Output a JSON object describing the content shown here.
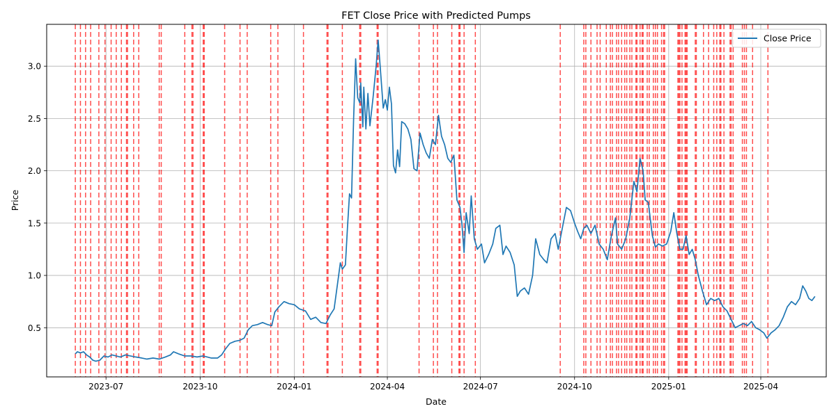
{
  "chart_data": {
    "type": "line",
    "title": "FET Close Price with Predicted Pumps",
    "xlabel": "Date",
    "ylabel": "Price",
    "x_range": [
      "2023-05-04",
      "2025-06-04"
    ],
    "ylim": [
      0.03,
      3.4
    ],
    "grid": true,
    "legend_position": "top-right",
    "x_ticks": [
      "2023-07-01",
      "2023-10-01",
      "2024-01-01",
      "2024-04-01",
      "2024-07-01",
      "2024-10-01",
      "2025-01-01",
      "2025-04-01"
    ],
    "x_tick_labels": [
      "2023-07",
      "2023-10",
      "2024-01",
      "2024-04",
      "2024-07",
      "2024-10",
      "2025-01",
      "2025-04"
    ],
    "y_ticks": [
      0.5,
      1.0,
      1.5,
      2.0,
      2.5,
      3.0
    ],
    "y_tick_labels": [
      "0.5",
      "1.0",
      "1.5",
      "2.0",
      "2.5",
      "3.0"
    ],
    "colors": {
      "line": "#1f77b4",
      "pump": "#ff0000",
      "grid": "#b0b0b0"
    },
    "series": [
      {
        "name": "Close Price",
        "points": [
          [
            "2023-06-01",
            0.25
          ],
          [
            "2023-06-03",
            0.27
          ],
          [
            "2023-06-06",
            0.26
          ],
          [
            "2023-06-09",
            0.27
          ],
          [
            "2023-06-12",
            0.24
          ],
          [
            "2023-06-15",
            0.22
          ],
          [
            "2023-06-18",
            0.19
          ],
          [
            "2023-06-21",
            0.18
          ],
          [
            "2023-06-25",
            0.19
          ],
          [
            "2023-06-29",
            0.23
          ],
          [
            "2023-07-03",
            0.22
          ],
          [
            "2023-07-07",
            0.24
          ],
          [
            "2023-07-11",
            0.23
          ],
          [
            "2023-07-15",
            0.22
          ],
          [
            "2023-07-20",
            0.24
          ],
          [
            "2023-07-25",
            0.23
          ],
          [
            "2023-07-30",
            0.22
          ],
          [
            "2023-08-05",
            0.21
          ],
          [
            "2023-08-10",
            0.2
          ],
          [
            "2023-08-16",
            0.21
          ],
          [
            "2023-08-22",
            0.2
          ],
          [
            "2023-08-28",
            0.22
          ],
          [
            "2023-09-02",
            0.24
          ],
          [
            "2023-09-05",
            0.27
          ],
          [
            "2023-09-10",
            0.25
          ],
          [
            "2023-09-16",
            0.23
          ],
          [
            "2023-09-22",
            0.23
          ],
          [
            "2023-09-28",
            0.22
          ],
          [
            "2023-10-04",
            0.23
          ],
          [
            "2023-10-08",
            0.22
          ],
          [
            "2023-10-12",
            0.21
          ],
          [
            "2023-10-18",
            0.21
          ],
          [
            "2023-10-22",
            0.24
          ],
          [
            "2023-10-26",
            0.3
          ],
          [
            "2023-10-30",
            0.35
          ],
          [
            "2023-11-04",
            0.37
          ],
          [
            "2023-11-09",
            0.38
          ],
          [
            "2023-11-13",
            0.4
          ],
          [
            "2023-11-17",
            0.48
          ],
          [
            "2023-11-21",
            0.52
          ],
          [
            "2023-11-26",
            0.53
          ],
          [
            "2023-12-01",
            0.55
          ],
          [
            "2023-12-06",
            0.53
          ],
          [
            "2023-12-10",
            0.52
          ],
          [
            "2023-12-13",
            0.65
          ],
          [
            "2023-12-17",
            0.7
          ],
          [
            "2023-12-22",
            0.75
          ],
          [
            "2023-12-27",
            0.73
          ],
          [
            "2024-01-01",
            0.72
          ],
          [
            "2024-01-06",
            0.68
          ],
          [
            "2024-01-12",
            0.66
          ],
          [
            "2024-01-17",
            0.58
          ],
          [
            "2024-01-22",
            0.6
          ],
          [
            "2024-01-27",
            0.55
          ],
          [
            "2024-02-01",
            0.54
          ],
          [
            "2024-02-05",
            0.62
          ],
          [
            "2024-02-09",
            0.68
          ],
          [
            "2024-02-13",
            0.97
          ],
          [
            "2024-02-15",
            1.12
          ],
          [
            "2024-02-17",
            1.06
          ],
          [
            "2024-02-20",
            1.1
          ],
          [
            "2024-02-22",
            1.45
          ],
          [
            "2024-02-24",
            1.78
          ],
          [
            "2024-02-26",
            1.74
          ],
          [
            "2024-02-28",
            2.5
          ],
          [
            "2024-03-01",
            3.07
          ],
          [
            "2024-03-03",
            2.7
          ],
          [
            "2024-03-05",
            2.65
          ],
          [
            "2024-03-06",
            2.84
          ],
          [
            "2024-03-08",
            2.42
          ],
          [
            "2024-03-09",
            2.8
          ],
          [
            "2024-03-11",
            2.4
          ],
          [
            "2024-03-13",
            2.74
          ],
          [
            "2024-03-15",
            2.43
          ],
          [
            "2024-03-18",
            2.7
          ],
          [
            "2024-03-21",
            3.0
          ],
          [
            "2024-03-23",
            3.25
          ],
          [
            "2024-03-25",
            3.0
          ],
          [
            "2024-03-28",
            2.6
          ],
          [
            "2024-03-30",
            2.68
          ],
          [
            "2024-04-01",
            2.58
          ],
          [
            "2024-04-03",
            2.8
          ],
          [
            "2024-04-05",
            2.64
          ],
          [
            "2024-04-07",
            2.05
          ],
          [
            "2024-04-09",
            1.98
          ],
          [
            "2024-04-11",
            2.2
          ],
          [
            "2024-04-13",
            2.04
          ],
          [
            "2024-04-15",
            2.47
          ],
          [
            "2024-04-18",
            2.45
          ],
          [
            "2024-04-21",
            2.4
          ],
          [
            "2024-04-24",
            2.3
          ],
          [
            "2024-04-27",
            2.02
          ],
          [
            "2024-04-30",
            2.0
          ],
          [
            "2024-05-03",
            2.36
          ],
          [
            "2024-05-06",
            2.25
          ],
          [
            "2024-05-09",
            2.17
          ],
          [
            "2024-05-12",
            2.12
          ],
          [
            "2024-05-15",
            2.3
          ],
          [
            "2024-05-18",
            2.25
          ],
          [
            "2024-05-21",
            2.53
          ],
          [
            "2024-05-24",
            2.33
          ],
          [
            "2024-05-27",
            2.25
          ],
          [
            "2024-05-30",
            2.12
          ],
          [
            "2024-06-02",
            2.08
          ],
          [
            "2024-06-05",
            2.15
          ],
          [
            "2024-06-08",
            1.72
          ],
          [
            "2024-06-11",
            1.65
          ],
          [
            "2024-06-13",
            1.48
          ],
          [
            "2024-06-15",
            1.22
          ],
          [
            "2024-06-17",
            1.6
          ],
          [
            "2024-06-20",
            1.4
          ],
          [
            "2024-06-22",
            1.76
          ],
          [
            "2024-06-25",
            1.35
          ],
          [
            "2024-06-28",
            1.25
          ],
          [
            "2024-07-02",
            1.3
          ],
          [
            "2024-07-05",
            1.12
          ],
          [
            "2024-07-09",
            1.2
          ],
          [
            "2024-07-13",
            1.3
          ],
          [
            "2024-07-16",
            1.45
          ],
          [
            "2024-07-20",
            1.48
          ],
          [
            "2024-07-23",
            1.2
          ],
          [
            "2024-07-26",
            1.28
          ],
          [
            "2024-07-30",
            1.22
          ],
          [
            "2024-08-03",
            1.1
          ],
          [
            "2024-08-06",
            0.8
          ],
          [
            "2024-08-09",
            0.85
          ],
          [
            "2024-08-13",
            0.88
          ],
          [
            "2024-08-17",
            0.82
          ],
          [
            "2024-08-21",
            1.0
          ],
          [
            "2024-08-24",
            1.35
          ],
          [
            "2024-08-28",
            1.2
          ],
          [
            "2024-09-01",
            1.15
          ],
          [
            "2024-09-04",
            1.12
          ],
          [
            "2024-09-08",
            1.35
          ],
          [
            "2024-09-12",
            1.4
          ],
          [
            "2024-09-15",
            1.25
          ],
          [
            "2024-09-19",
            1.45
          ],
          [
            "2024-09-23",
            1.65
          ],
          [
            "2024-09-27",
            1.62
          ],
          [
            "2024-10-01",
            1.5
          ],
          [
            "2024-10-04",
            1.42
          ],
          [
            "2024-10-07",
            1.35
          ],
          [
            "2024-10-10",
            1.45
          ],
          [
            "2024-10-13",
            1.48
          ],
          [
            "2024-10-17",
            1.4
          ],
          [
            "2024-10-21",
            1.48
          ],
          [
            "2024-10-25",
            1.3
          ],
          [
            "2024-10-29",
            1.25
          ],
          [
            "2024-11-02",
            1.15
          ],
          [
            "2024-11-06",
            1.38
          ],
          [
            "2024-11-10",
            1.55
          ],
          [
            "2024-11-12",
            1.3
          ],
          [
            "2024-11-16",
            1.25
          ],
          [
            "2024-11-20",
            1.35
          ],
          [
            "2024-11-24",
            1.55
          ],
          [
            "2024-11-28",
            1.9
          ],
          [
            "2024-12-01",
            1.8
          ],
          [
            "2024-12-04",
            2.12
          ],
          [
            "2024-12-07",
            2.0
          ],
          [
            "2024-12-09",
            1.72
          ],
          [
            "2024-12-12",
            1.7
          ],
          [
            "2024-12-16",
            1.38
          ],
          [
            "2024-12-19",
            1.27
          ],
          [
            "2024-12-22",
            1.3
          ],
          [
            "2024-12-26",
            1.28
          ],
          [
            "2024-12-30",
            1.3
          ],
          [
            "2025-01-03",
            1.42
          ],
          [
            "2025-01-06",
            1.6
          ],
          [
            "2025-01-09",
            1.4
          ],
          [
            "2025-01-12",
            1.25
          ],
          [
            "2025-01-15",
            1.25
          ],
          [
            "2025-01-18",
            1.38
          ],
          [
            "2025-01-21",
            1.2
          ],
          [
            "2025-01-24",
            1.25
          ],
          [
            "2025-01-27",
            1.15
          ],
          [
            "2025-01-30",
            1.0
          ],
          [
            "2025-02-03",
            0.85
          ],
          [
            "2025-02-07",
            0.72
          ],
          [
            "2025-02-11",
            0.78
          ],
          [
            "2025-02-15",
            0.76
          ],
          [
            "2025-02-19",
            0.78
          ],
          [
            "2025-02-23",
            0.7
          ],
          [
            "2025-02-27",
            0.66
          ],
          [
            "2025-03-03",
            0.58
          ],
          [
            "2025-03-07",
            0.5
          ],
          [
            "2025-03-11",
            0.52
          ],
          [
            "2025-03-15",
            0.54
          ],
          [
            "2025-03-19",
            0.52
          ],
          [
            "2025-03-23",
            0.56
          ],
          [
            "2025-03-27",
            0.5
          ],
          [
            "2025-03-31",
            0.48
          ],
          [
            "2025-04-04",
            0.45
          ],
          [
            "2025-04-07",
            0.4
          ],
          [
            "2025-04-11",
            0.45
          ],
          [
            "2025-04-15",
            0.48
          ],
          [
            "2025-04-19",
            0.52
          ],
          [
            "2025-04-23",
            0.6
          ],
          [
            "2025-04-27",
            0.7
          ],
          [
            "2025-05-01",
            0.75
          ],
          [
            "2025-05-05",
            0.72
          ],
          [
            "2025-05-09",
            0.78
          ],
          [
            "2025-05-12",
            0.9
          ],
          [
            "2025-05-15",
            0.85
          ],
          [
            "2025-05-18",
            0.78
          ],
          [
            "2025-05-21",
            0.76
          ],
          [
            "2025-05-24",
            0.8
          ]
        ]
      }
    ],
    "predicted_pumps": [
      "2023-06-01",
      "2023-06-06",
      "2023-06-11",
      "2023-06-16",
      "2023-06-24",
      "2023-06-30",
      "2023-07-06",
      "2023-07-11",
      "2023-07-16",
      "2023-07-21",
      "2023-07-22",
      "2023-07-28",
      "2023-08-02",
      "2023-08-22",
      "2023-08-24",
      "2023-09-16",
      "2023-09-23",
      "2023-09-24",
      "2023-10-04",
      "2023-10-05",
      "2023-10-25",
      "2023-11-09",
      "2023-11-16",
      "2023-12-09",
      "2023-12-16",
      "2024-01-10",
      "2024-02-02",
      "2024-02-03",
      "2024-02-17",
      "2024-03-05",
      "2024-03-06",
      "2024-03-22",
      "2024-03-23",
      "2024-05-02",
      "2024-05-16",
      "2024-05-20",
      "2024-06-03",
      "2024-06-10",
      "2024-06-11",
      "2024-06-15",
      "2024-06-26",
      "2024-09-17",
      "2024-10-10",
      "2024-10-12",
      "2024-10-17",
      "2024-10-23",
      "2024-10-26",
      "2024-11-01",
      "2024-11-05",
      "2024-11-07",
      "2024-11-11",
      "2024-11-13",
      "2024-11-16",
      "2024-11-19",
      "2024-11-21",
      "2024-11-24",
      "2024-11-26",
      "2024-11-30",
      "2024-12-01",
      "2024-12-04",
      "2024-12-06",
      "2024-12-07",
      "2024-12-11",
      "2024-12-13",
      "2024-12-17",
      "2024-12-19",
      "2024-12-21",
      "2024-12-25",
      "2024-12-27",
      "2024-12-28",
      "2025-01-10",
      "2025-01-11",
      "2025-01-12",
      "2025-01-14",
      "2025-01-17",
      "2025-01-18",
      "2025-01-19",
      "2025-01-27",
      "2025-01-28",
      "2025-02-04",
      "2025-02-09",
      "2025-02-14",
      "2025-02-17",
      "2025-02-20",
      "2025-02-21",
      "2025-02-24",
      "2025-03-02",
      "2025-03-03",
      "2025-03-05",
      "2025-03-14",
      "2025-03-16",
      "2025-03-18",
      "2025-03-24",
      "2025-04-08"
    ]
  }
}
